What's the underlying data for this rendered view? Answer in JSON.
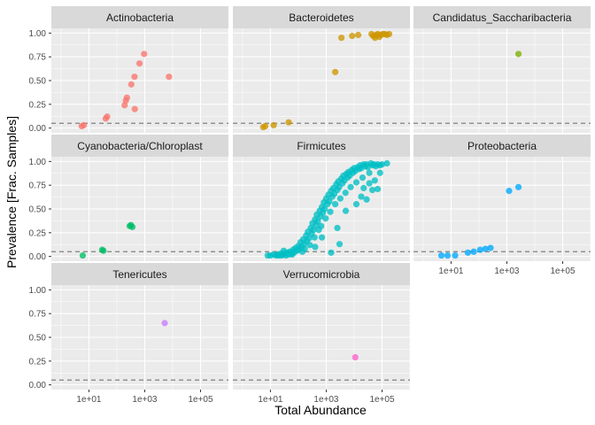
{
  "chart_data": {
    "type": "scatter",
    "facet_layout": "facet_wrap by phylum, 3 columns, shared log10 x-axis",
    "xlabel": "Total Abundance",
    "ylabel": "Prevalence [Frac. Samples]",
    "x_scale": "log10",
    "xlim": [
      0.45,
      1000000
    ],
    "ylim": [
      -0.05,
      1.05
    ],
    "x_ticks": [
      10,
      1000,
      100000
    ],
    "x_tick_labels": [
      "1e+01",
      "1e+03",
      "1e+05"
    ],
    "y_ticks": [
      0,
      0.25,
      0.5,
      0.75,
      1
    ],
    "y_tick_labels": [
      "0.00",
      "0.25",
      "0.50",
      "0.75",
      "1.00"
    ],
    "threshold_line_y": 0.05,
    "grid": true,
    "legend": "none",
    "panel_background": "#ebebeb",
    "strip_background": "#d9d9d9",
    "threshold_color": "#808080",
    "facets": [
      {
        "name": "Actinobacteria",
        "color": "#f8766d",
        "points": [
          [
            5.5,
            0.02
          ],
          [
            6.5,
            0.03
          ],
          [
            40,
            0.1
          ],
          [
            45,
            0.12
          ],
          [
            190,
            0.24
          ],
          [
            210,
            0.29
          ],
          [
            230,
            0.32
          ],
          [
            330,
            0.46
          ],
          [
            430,
            0.54
          ],
          [
            440,
            0.2
          ],
          [
            650,
            0.68
          ],
          [
            950,
            0.78
          ],
          [
            7400,
            0.54
          ]
        ]
      },
      {
        "name": "Bacteroidetes",
        "color": "#cd9600",
        "points": [
          [
            5.5,
            0.01
          ],
          [
            6.5,
            0.02
          ],
          [
            13,
            0.03
          ],
          [
            45,
            0.06
          ],
          [
            2100,
            0.59
          ],
          [
            3500,
            0.95
          ],
          [
            8500,
            0.97
          ],
          [
            14000,
            0.98
          ],
          [
            42000,
            0.99
          ],
          [
            48000,
            0.97
          ],
          [
            56000,
            0.95
          ],
          [
            62000,
            0.98
          ],
          [
            70000,
            0.99
          ],
          [
            80000,
            0.96
          ],
          [
            90000,
            0.98
          ],
          [
            105000,
            0.99
          ],
          [
            125000,
            0.99
          ],
          [
            150000,
            0.98
          ],
          [
            180000,
            0.99
          ]
        ]
      },
      {
        "name": "Candidatus_Saccharibacteria",
        "color": "#7cae00",
        "points": [
          [
            2600,
            0.78
          ]
        ]
      },
      {
        "name": "Cyanobacteria/Chloroplast",
        "color": "#00be67",
        "points": [
          [
            6,
            0.01
          ],
          [
            30,
            0.07
          ],
          [
            33,
            0.06
          ],
          [
            290,
            0.32
          ],
          [
            320,
            0.33
          ],
          [
            360,
            0.31
          ]
        ]
      },
      {
        "name": "Firmicutes",
        "color": "#00bfc4",
        "points": [
          [
            8,
            0.01
          ],
          [
            10,
            0.01
          ],
          [
            13,
            0.02
          ],
          [
            16,
            0.01
          ],
          [
            18,
            0.02
          ],
          [
            20,
            0.01
          ],
          [
            23,
            0.03
          ],
          [
            25,
            0.01
          ],
          [
            28,
            0.02
          ],
          [
            32,
            0.03
          ],
          [
            36,
            0.01
          ],
          [
            40,
            0.04
          ],
          [
            45,
            0.02
          ],
          [
            50,
            0.05
          ],
          [
            55,
            0.03
          ],
          [
            60,
            0.02
          ],
          [
            65,
            0.07
          ],
          [
            70,
            0.04
          ],
          [
            80,
            0.09
          ],
          [
            90,
            0.06
          ],
          [
            100,
            0.11
          ],
          [
            110,
            0.08
          ],
          [
            120,
            0.15
          ],
          [
            130,
            0.1
          ],
          [
            140,
            0.05
          ],
          [
            150,
            0.18
          ],
          [
            160,
            0.13
          ],
          [
            170,
            0.08
          ],
          [
            190,
            0.22
          ],
          [
            200,
            0.16
          ],
          [
            220,
            0.26
          ],
          [
            240,
            0.19
          ],
          [
            260,
            0.12
          ],
          [
            280,
            0.3
          ],
          [
            300,
            0.24
          ],
          [
            320,
            0.35
          ],
          [
            350,
            0.28
          ],
          [
            380,
            0.2
          ],
          [
            400,
            0.39
          ],
          [
            430,
            0.33
          ],
          [
            460,
            0.44
          ],
          [
            500,
            0.37
          ],
          [
            540,
            0.28
          ],
          [
            580,
            0.48
          ],
          [
            620,
            0.42
          ],
          [
            660,
            0.32
          ],
          [
            700,
            0.52
          ],
          [
            760,
            0.46
          ],
          [
            820,
            0.57
          ],
          [
            880,
            0.5
          ],
          [
            950,
            0.4
          ],
          [
            1000,
            0.61
          ],
          [
            1100,
            0.55
          ],
          [
            1200,
            0.65
          ],
          [
            1300,
            0.58
          ],
          [
            1400,
            0.47
          ],
          [
            1500,
            0.69
          ],
          [
            1650,
            0.63
          ],
          [
            1800,
            0.72
          ],
          [
            1950,
            0.66
          ],
          [
            2100,
            0.55
          ],
          [
            2300,
            0.76
          ],
          [
            2500,
            0.7
          ],
          [
            2700,
            0.79
          ],
          [
            2900,
            0.73
          ],
          [
            3200,
            0.61
          ],
          [
            3500,
            0.82
          ],
          [
            3800,
            0.77
          ],
          [
            4100,
            0.85
          ],
          [
            4500,
            0.8
          ],
          [
            4900,
            0.67
          ],
          [
            5300,
            0.87
          ],
          [
            5800,
            0.83
          ],
          [
            6300,
            0.89
          ],
          [
            6900,
            0.85
          ],
          [
            7500,
            0.73
          ],
          [
            8200,
            0.91
          ],
          [
            9000,
            0.88
          ],
          [
            10000,
            0.93
          ],
          [
            11000,
            0.9
          ],
          [
            12000,
            0.78
          ],
          [
            13500,
            0.94
          ],
          [
            15000,
            0.92
          ],
          [
            16500,
            0.96
          ],
          [
            18000,
            0.93
          ],
          [
            20000,
            0.83
          ],
          [
            22000,
            0.97
          ],
          [
            25000,
            0.95
          ],
          [
            28000,
            0.97
          ],
          [
            31000,
            0.94
          ],
          [
            35000,
            0.88
          ],
          [
            40000,
            0.98
          ],
          [
            46000,
            0.96
          ],
          [
            52000,
            0.97
          ],
          [
            60000,
            0.95
          ],
          [
            70000,
            0.97
          ],
          [
            85000,
            0.96
          ],
          [
            100000,
            0.97
          ],
          [
            150000,
            0.98
          ],
          [
            30,
            0.06
          ],
          [
            400,
            0.1
          ],
          [
            700,
            0.2
          ],
          [
            1500,
            0.04
          ],
          [
            2500,
            0.3
          ],
          [
            3000,
            0.13
          ],
          [
            5000,
            0.48
          ],
          [
            12000,
            0.55
          ],
          [
            18000,
            0.63
          ],
          [
            22000,
            0.72
          ],
          [
            28000,
            0.6
          ],
          [
            35000,
            0.77
          ],
          [
            45000,
            0.7
          ],
          [
            55000,
            0.8
          ],
          [
            70000,
            0.71
          ],
          [
            85000,
            0.88
          ]
        ]
      },
      {
        "name": "Proteobacteria",
        "color": "#00a9ff",
        "points": [
          [
            4.5,
            0.01
          ],
          [
            7.5,
            0.01
          ],
          [
            14,
            0.01
          ],
          [
            40,
            0.04
          ],
          [
            65,
            0.05
          ],
          [
            110,
            0.07
          ],
          [
            170,
            0.08
          ],
          [
            260,
            0.09
          ],
          [
            1200,
            0.69
          ],
          [
            2600,
            0.73
          ]
        ]
      },
      {
        "name": "Tenericutes",
        "color": "#c77cff",
        "points": [
          [
            5200,
            0.65
          ]
        ]
      },
      {
        "name": "Verrucomicrobia",
        "color": "#ff61cc",
        "points": [
          [
            11000,
            0.29
          ]
        ]
      }
    ]
  }
}
